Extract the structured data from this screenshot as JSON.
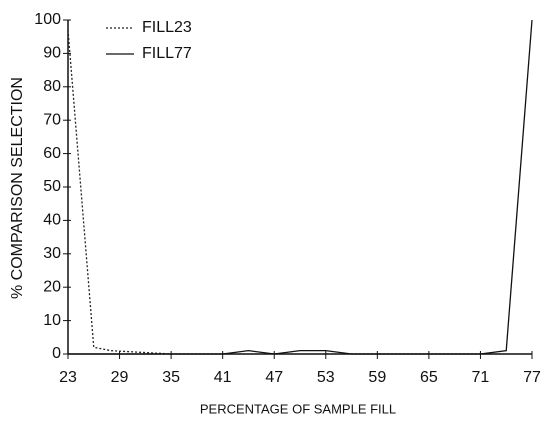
{
  "chart_data": {
    "type": "line",
    "xlabel": "PERCENTAGE OF SAMPLE FILL",
    "ylabel": "% COMPARISON SELECTION",
    "x": [
      23,
      26,
      28,
      35,
      41,
      44,
      47,
      50,
      53,
      56,
      59,
      65,
      71,
      74,
      77
    ],
    "series": [
      {
        "name": "FILL23",
        "color": "#222222",
        "style": "dotted",
        "values": [
          97,
          2,
          1,
          0,
          0,
          0,
          0,
          0,
          0,
          0,
          0,
          0,
          0,
          0,
          0
        ]
      },
      {
        "name": "FILL77",
        "color": "#111111",
        "style": "solid",
        "values": [
          0,
          0,
          0,
          0,
          0,
          1,
          0,
          1,
          1,
          0,
          0,
          0,
          0,
          1,
          100
        ]
      }
    ],
    "xlim": [
      23,
      77
    ],
    "xticks": [
      23,
      29,
      35,
      41,
      47,
      53,
      59,
      65,
      71,
      77
    ],
    "ylim": [
      0,
      100
    ],
    "yticks": [
      0,
      10,
      20,
      30,
      40,
      50,
      60,
      70,
      80,
      90,
      100
    ],
    "legend": "upper left"
  }
}
